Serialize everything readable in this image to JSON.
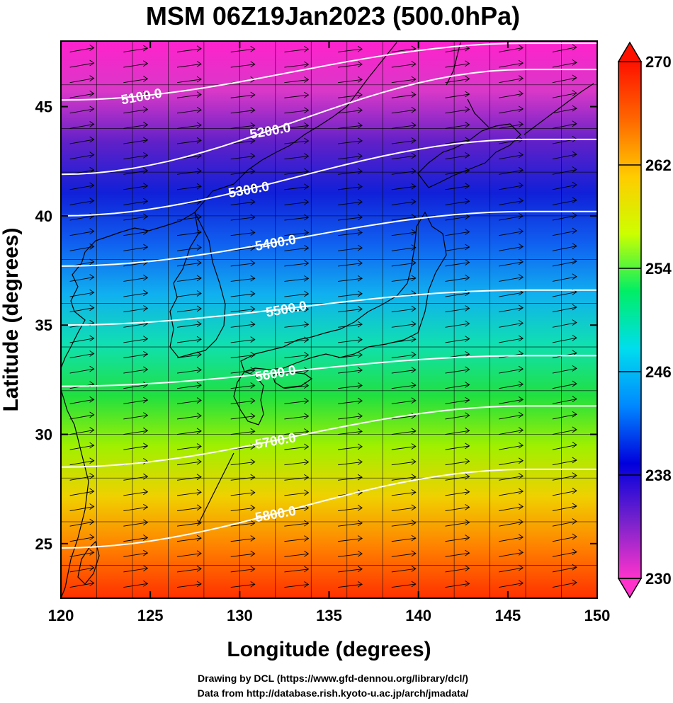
{
  "title": "MSM 06Z19Jan2023 (500.0hPa)",
  "xlabel": "Longitude (degrees)",
  "ylabel": "Latitude  (degrees)",
  "xticks": [
    "120",
    "125",
    "130",
    "135",
    "140",
    "145",
    "150"
  ],
  "yticks": [
    "25",
    "30",
    "35",
    "40",
    "45"
  ],
  "colorbar": {
    "ticks": [
      "230",
      "238",
      "246",
      "254",
      "262",
      "270"
    ],
    "range": [
      230,
      270
    ],
    "stops": [
      "#ff33cc",
      "#7722cc",
      "#0000dd",
      "#0088ff",
      "#00ddee",
      "#00ee66",
      "#ccff00",
      "#ffcc00",
      "#ff6600",
      "#ff1100"
    ]
  },
  "map": {
    "lon_range": [
      120,
      150
    ],
    "lat_range": [
      22.5,
      48
    ],
    "background_field": "temperature (K)",
    "vector_field": "wind"
  },
  "contours": [
    {
      "label": "5100.0",
      "lat_west": 45.3,
      "lat_east": 47.9
    },
    {
      "label": "5200.0",
      "lat_west": 41.9,
      "lat_east": 46.7
    },
    {
      "label": "5300.0",
      "lat_west": 40.0,
      "lat_east": 43.5
    },
    {
      "label": "5400.0",
      "lat_west": 37.7,
      "lat_east": 40.2
    },
    {
      "label": "5500.0",
      "lat_west": 35.0,
      "lat_east": 36.6
    },
    {
      "label": "5600.0",
      "lat_west": 32.2,
      "lat_east": 33.6
    },
    {
      "label": "5700.0",
      "lat_west": 28.5,
      "lat_east": 31.3
    },
    {
      "label": "5800.0",
      "lat_west": 24.8,
      "lat_east": 28.4
    }
  ],
  "credits": [
    "Drawing by DCL (https://www.gfd-dennou.org/library/dcl/)",
    "Data from http://database.rish.kyoto-u.ac.jp/arch/jmadata/"
  ]
}
